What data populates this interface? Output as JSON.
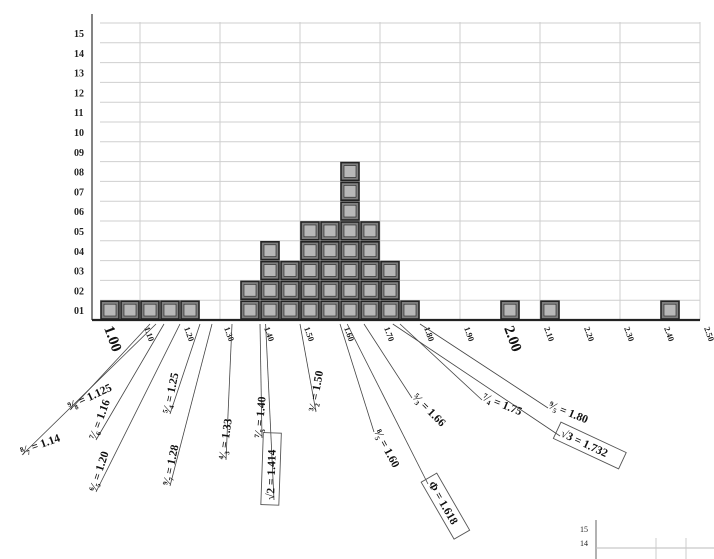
{
  "chart_data": {
    "type": "bar",
    "xlabel": "",
    "ylabel": "",
    "ylim": [
      0,
      15
    ],
    "xlim": [
      1.0,
      2.5
    ],
    "bin_width": 0.05,
    "grid": true,
    "y_tick_labels": [
      "01",
      "02",
      "03",
      "04",
      "05",
      "06",
      "07",
      "08",
      "09",
      "10",
      "11",
      "12",
      "13",
      "14",
      "15"
    ],
    "x_tick_labels": [
      {
        "text": "1.00",
        "value": 1.0,
        "big": true
      },
      {
        "text": "1.10",
        "value": 1.1
      },
      {
        "text": "1.20",
        "value": 1.2
      },
      {
        "text": "1.30",
        "value": 1.3
      },
      {
        "text": "1.40",
        "value": 1.4
      },
      {
        "text": "1.50",
        "value": 1.5
      },
      {
        "text": "1.60",
        "value": 1.6
      },
      {
        "text": "1.70",
        "value": 1.7
      },
      {
        "text": "1.80",
        "value": 1.8
      },
      {
        "text": "1.90",
        "value": 1.9
      },
      {
        "text": "2.00",
        "value": 2.0,
        "big": true
      },
      {
        "text": "2.10",
        "value": 2.1
      },
      {
        "text": "2.20",
        "value": 2.2
      },
      {
        "text": "2.30",
        "value": 2.3
      },
      {
        "text": "2.40",
        "value": 2.4
      },
      {
        "text": "2.50",
        "value": 2.5
      }
    ],
    "bars": [
      {
        "x": 1.0,
        "count": 1
      },
      {
        "x": 1.05,
        "count": 1
      },
      {
        "x": 1.1,
        "count": 1
      },
      {
        "x": 1.15,
        "count": 1
      },
      {
        "x": 1.2,
        "count": 1
      },
      {
        "x": 1.35,
        "count": 2
      },
      {
        "x": 1.4,
        "count": 4
      },
      {
        "x": 1.45,
        "count": 3
      },
      {
        "x": 1.5,
        "count": 5
      },
      {
        "x": 1.55,
        "count": 5
      },
      {
        "x": 1.6,
        "count": 8
      },
      {
        "x": 1.65,
        "count": 5
      },
      {
        "x": 1.7,
        "count": 3
      },
      {
        "x": 1.75,
        "count": 1
      },
      {
        "x": 2.0,
        "count": 1
      },
      {
        "x": 2.1,
        "count": 1
      },
      {
        "x": 2.4,
        "count": 1
      }
    ],
    "annotations": [
      {
        "text": "⁹⁄₈ = 1.125",
        "value": 1.125,
        "boxed": false
      },
      {
        "text": "⁸⁄₇ = 1.14",
        "value": 1.14,
        "boxed": false
      },
      {
        "text": "⁷⁄₆ = 1.16",
        "value": 1.16,
        "boxed": false
      },
      {
        "text": "⁶⁄₅ = 1.20",
        "value": 1.2,
        "boxed": false
      },
      {
        "text": "⁵⁄₄ = 1.25",
        "value": 1.25,
        "boxed": false
      },
      {
        "text": "⁹⁄₇ = 1.28",
        "value": 1.28,
        "boxed": false
      },
      {
        "text": "⁴⁄₃ = 1.33",
        "value": 1.33,
        "boxed": false
      },
      {
        "text": "⁷⁄₅ = 1.40",
        "value": 1.4,
        "boxed": false
      },
      {
        "text": "√2 = 1.414",
        "value": 1.414,
        "boxed": true
      },
      {
        "text": "³⁄₂ = 1.50",
        "value": 1.5,
        "boxed": false
      },
      {
        "text": "⁸⁄₅ = 1.60",
        "value": 1.6,
        "boxed": false
      },
      {
        "text": "Φ = 1.618",
        "value": 1.618,
        "boxed": true
      },
      {
        "text": "⁵⁄₃ = 1.66",
        "value": 1.66,
        "boxed": false
      },
      {
        "text": "⁷⁄₄ = 1.75",
        "value": 1.75,
        "boxed": false
      },
      {
        "text": "√3 = 1.732",
        "value": 1.732,
        "boxed": true
      },
      {
        "text": "⁹⁄₅ = 1.80",
        "value": 1.8,
        "boxed": false
      }
    ]
  },
  "inset": {
    "y_tick_labels": [
      "15",
      "14"
    ]
  },
  "colors": {
    "bar_fill": "#7f7f7f",
    "bar_stroke": "#222222",
    "bar_highlight": "#b8b8b8",
    "grid": "#cfcfcf"
  }
}
